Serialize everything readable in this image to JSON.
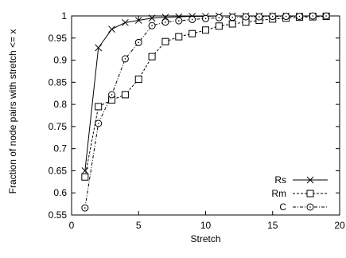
{
  "chart_data": {
    "type": "line",
    "title": "",
    "xlabel": "Stretch",
    "ylabel": "Fraction of node pairs with stretch <= x",
    "xlim": [
      0,
      20
    ],
    "ylim": [
      0.55,
      1.0
    ],
    "xticks": [
      0,
      5,
      10,
      15,
      20
    ],
    "yticks": [
      0.55,
      0.6,
      0.65,
      0.7,
      0.75,
      0.8,
      0.85,
      0.9,
      0.95,
      1
    ],
    "ytick_labels": [
      "0.55",
      "0.6",
      "0.65",
      "0.7",
      "0.75",
      "0.8",
      "0.85",
      "0.9",
      "0.95",
      "1"
    ],
    "grid": false,
    "legend_position": "bottom-right",
    "series": [
      {
        "name": "Rs",
        "marker": "cross",
        "line_style": "solid",
        "x": [
          1,
          2,
          3,
          4,
          5,
          6,
          7,
          8,
          9,
          10,
          11,
          12,
          13,
          14,
          15,
          16,
          17,
          18,
          19
        ],
        "y": [
          0.65,
          0.928,
          0.97,
          0.985,
          0.99,
          0.995,
          0.997,
          0.998,
          0.999,
          0.999,
          1.0,
          1.0,
          1.0,
          1.0,
          1.0,
          1.0,
          1.0,
          1.0,
          1.0
        ]
      },
      {
        "name": "Rm",
        "marker": "square",
        "line_style": "dashed",
        "x": [
          1,
          2,
          3,
          4,
          5,
          6,
          7,
          8,
          9,
          10,
          11,
          12,
          13,
          14,
          15,
          16,
          17,
          18,
          19
        ],
        "y": [
          0.636,
          0.795,
          0.81,
          0.822,
          0.857,
          0.908,
          0.942,
          0.953,
          0.96,
          0.968,
          0.977,
          0.982,
          0.986,
          0.99,
          0.993,
          0.995,
          0.997,
          0.998,
          0.999
        ]
      },
      {
        "name": "C",
        "marker": "circle",
        "line_style": "dashdot",
        "x": [
          1,
          2,
          3,
          4,
          5,
          6,
          7,
          8,
          9,
          10,
          11,
          12,
          13,
          14,
          15,
          16,
          17,
          18,
          19
        ],
        "y": [
          0.566,
          0.757,
          0.822,
          0.903,
          0.94,
          0.978,
          0.986,
          0.989,
          0.992,
          0.994,
          0.996,
          0.997,
          0.998,
          0.998,
          0.999,
          0.999,
          0.999,
          1.0,
          1.0
        ]
      }
    ]
  }
}
